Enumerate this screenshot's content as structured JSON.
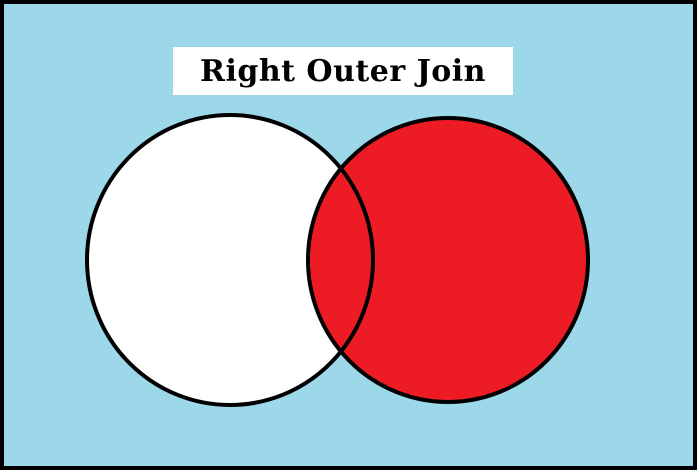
{
  "title": "Right Outer Join",
  "colors": {
    "background": "#9dd8ea",
    "frame": "#000000",
    "left_set": "#ffffff",
    "right_set": "#ed1c24",
    "outline": "#000000"
  }
}
